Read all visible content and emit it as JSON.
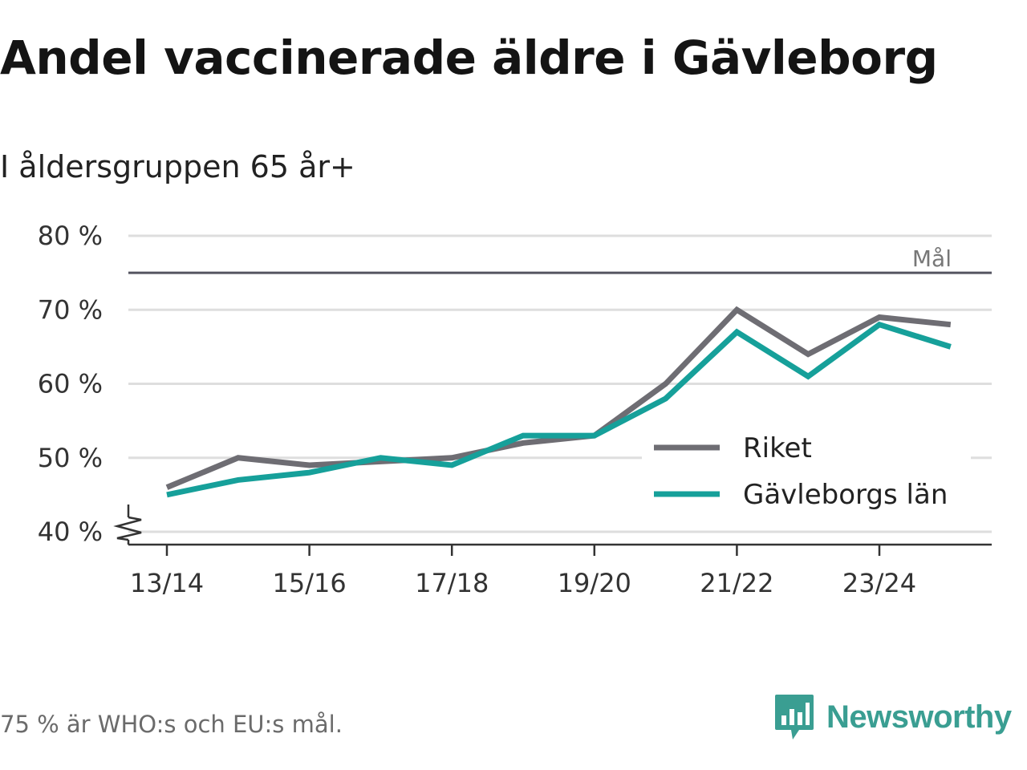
{
  "title": "Andel vaccinerade äldre i Gävleborg",
  "subtitle": "I åldersgruppen 65 år+",
  "footnote": "75 % är WHO:s och EU:s mål.",
  "brand": {
    "name": "Newsworthy",
    "icon": "newsworthy-logo-icon",
    "color": "#3a9e92"
  },
  "chart_data": {
    "type": "line",
    "x": [
      "13/14",
      "14/15",
      "15/16",
      "16/17",
      "17/18",
      "18/19",
      "19/20",
      "20/21",
      "21/22",
      "22/23",
      "23/24",
      "24/25"
    ],
    "x_tick_labels": [
      "13/14",
      "15/16",
      "17/18",
      "19/20",
      "21/22",
      "23/24"
    ],
    "y_ticks": [
      40,
      50,
      60,
      70,
      80
    ],
    "y_tick_labels": [
      "40 %",
      "50 %",
      "60 %",
      "70 %",
      "80 %"
    ],
    "ylim": [
      40,
      80
    ],
    "y_axis_broken": true,
    "grid": true,
    "legend_position": "right",
    "reference_line": {
      "value": 75,
      "label": "Mål",
      "color": "#555560"
    },
    "series": [
      {
        "name": "Riket",
        "color": "#6e6d73",
        "values": [
          46,
          50,
          49,
          49.5,
          50,
          52,
          53,
          60,
          70,
          64,
          69,
          68
        ]
      },
      {
        "name": "Gävleborgs län",
        "color": "#16a09a",
        "values": [
          45,
          47,
          48,
          50,
          49,
          53,
          53,
          58,
          67,
          61,
          68,
          65
        ]
      }
    ]
  }
}
